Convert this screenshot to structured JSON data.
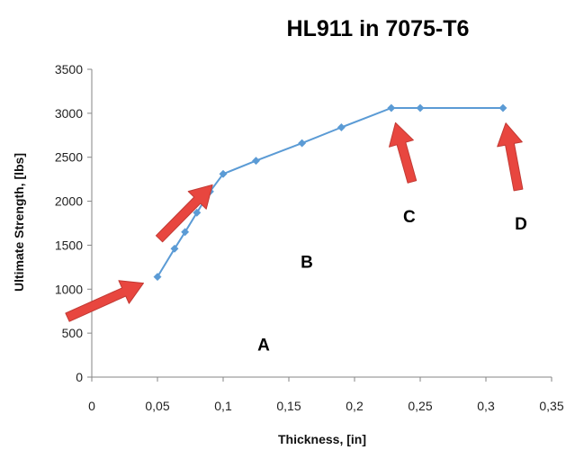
{
  "chart_data": {
    "type": "line",
    "title": "HL911 in 7075-T6",
    "xlabel": "Thickness,  [in]",
    "ylabel": "Ultimate Strength, [lbs]",
    "xlim": [
      0,
      0.35
    ],
    "ylim": [
      0,
      3500
    ],
    "x_ticks": [
      "0",
      "0,05",
      "0,1",
      "0,15",
      "0,2",
      "0,25",
      "0,3",
      "0,35"
    ],
    "y_ticks": [
      "0",
      "500",
      "1000",
      "1500",
      "2000",
      "2500",
      "3000",
      "3500"
    ],
    "grid": false,
    "series": [
      {
        "color": "#5b9bd5",
        "marker": "diamond",
        "x": [
          0.05,
          0.063,
          0.071,
          0.08,
          0.09,
          0.1,
          0.125,
          0.16,
          0.19,
          0.228,
          0.25,
          0.313
        ],
        "y": [
          1140,
          1460,
          1650,
          1870,
          2110,
          2310,
          2460,
          2660,
          2840,
          3060,
          3060,
          3060
        ]
      }
    ],
    "annotations": [
      {
        "label": "A",
        "arrow_color": "#e8463f",
        "points_to": {
          "x": 0.05,
          "y": 1140
        }
      },
      {
        "label": "B",
        "arrow_color": "#e8463f",
        "points_to": {
          "x": 0.1,
          "y": 2310
        }
      },
      {
        "label": "C",
        "arrow_color": "#e8463f",
        "points_to": {
          "x": 0.228,
          "y": 3060
        }
      },
      {
        "label": "D",
        "arrow_color": "#e8463f",
        "points_to": {
          "x": 0.313,
          "y": 3060
        }
      }
    ]
  }
}
